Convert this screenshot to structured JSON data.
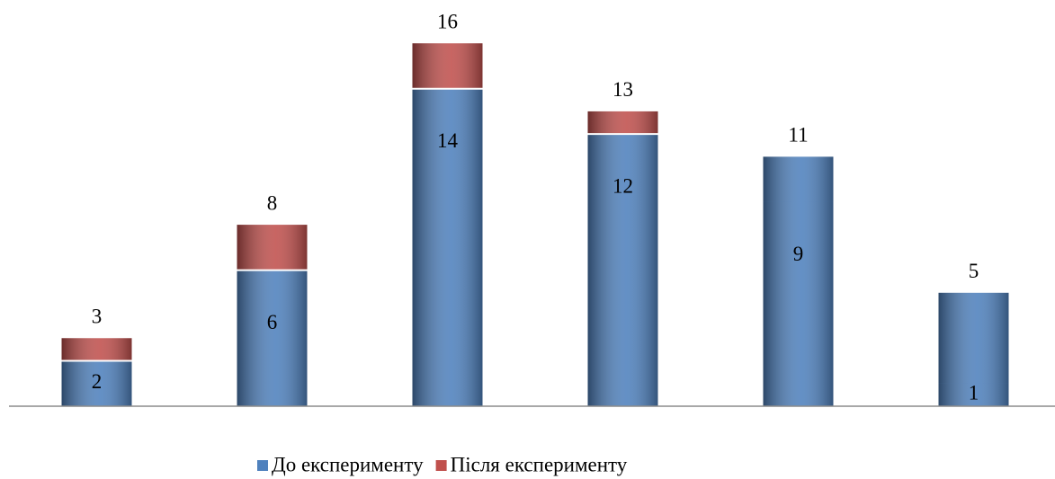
{
  "chart_data": {
    "type": "bar",
    "series": [
      {
        "name": "До експерименту",
        "color": "#4f81bd",
        "values": [
          2,
          6,
          14,
          12,
          9,
          1
        ]
      },
      {
        "name": "Після експерименту",
        "color": "#c0504d",
        "values": [
          3,
          8,
          16,
          13,
          11,
          5
        ],
        "point_colors": [
          "#c0504d",
          "#c0504d",
          "#c0504d",
          "#c0504d",
          "#4f81bd",
          "#4f81bd"
        ]
      }
    ],
    "ylim": [
      0,
      17
    ],
    "grid": false,
    "legend": "bottom"
  }
}
